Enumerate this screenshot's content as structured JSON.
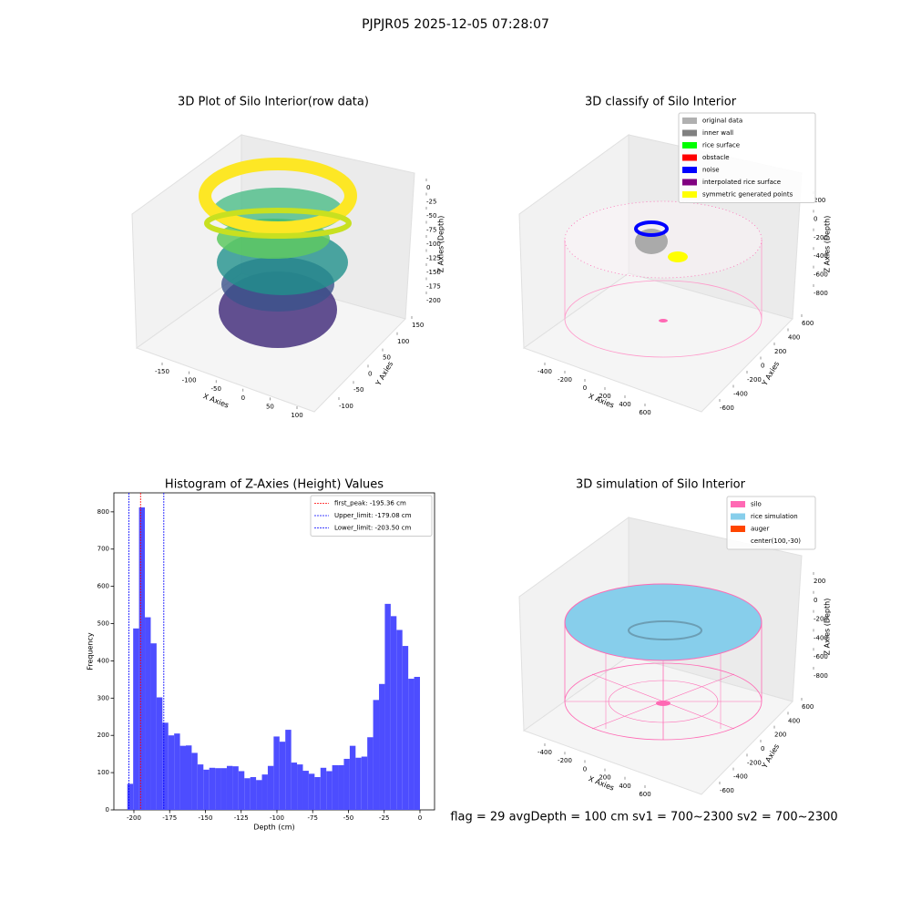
{
  "title": "PJPJR05 2025-12-05 07:28:07",
  "footer": "flag = 29  avgDepth = 100 cm  sv1 = 700~2300  sv2 = 700~2300",
  "chart_data": [
    {
      "type": "scatter3d",
      "title": "3D Plot of Silo Interior(row data)",
      "xlabel": "X Axies",
      "ylabel": "Y Axies",
      "zlabel": "Z Axies (Depth)",
      "xticks": [
        -150,
        -100,
        -50,
        0,
        50,
        100
      ],
      "yticks": [
        -100,
        -50,
        0,
        50,
        100,
        150
      ],
      "zticks": [
        0,
        -25,
        -50,
        -75,
        -100,
        -125,
        -150,
        -175,
        -200
      ]
    },
    {
      "type": "scatter3d",
      "title": "3D classify of Silo Interior",
      "xlabel": "X Axies",
      "ylabel": "Y Axies",
      "zlabel": "Z Axies (Depth)",
      "xticks": [
        -400,
        -200,
        0,
        200,
        400,
        600
      ],
      "yticks": [
        -600,
        -400,
        -200,
        0,
        200,
        400,
        600
      ],
      "zticks": [
        200,
        0,
        -200,
        -400,
        -600,
        -800
      ],
      "legend": [
        {
          "name": "original data",
          "color": "#b0b0b0"
        },
        {
          "name": "inner wall",
          "color": "#808080"
        },
        {
          "name": "rice surface",
          "color": "#00ff00"
        },
        {
          "name": "obstacle",
          "color": "#ff0000"
        },
        {
          "name": "noise",
          "color": "#0000ff"
        },
        {
          "name": "interpolated rice surface",
          "color": "#800080"
        },
        {
          "name": "symmetric generated points",
          "color": "#ffff00"
        }
      ]
    },
    {
      "type": "histogram",
      "title": "Histogram of Z-Axies (Height) Values",
      "xlabel": "Depth (cm)",
      "ylabel": "Frequency",
      "color": "#4d4dff",
      "bins": [
        -204.6,
        -200.51,
        -196.42,
        -192.32,
        -188.23,
        -184.14,
        -180.05,
        -175.96,
        -171.86,
        -167.77,
        -163.68,
        -159.59,
        -155.5,
        -151.4,
        -147.31,
        -143.22,
        -139.13,
        -135.04,
        -130.94,
        -126.85,
        -122.76,
        -118.67,
        -114.58,
        -110.48,
        -106.39,
        -102.3,
        -98.21,
        -94.12,
        -90.02,
        -85.93,
        -81.84,
        -77.75,
        -73.66,
        -69.56,
        -65.47,
        -61.38,
        -57.29,
        -53.2,
        -49.1,
        -45.01,
        -40.92,
        -36.83,
        -32.74,
        -28.64,
        -24.55,
        -20.46,
        -16.37,
        -12.28,
        -8.18,
        -4.09,
        0
      ],
      "values": [
        70,
        487,
        812,
        517,
        447,
        302,
        234,
        200,
        205,
        172,
        173,
        153,
        122,
        108,
        113,
        112,
        112,
        118,
        117,
        104,
        85,
        88,
        80,
        95,
        118,
        197,
        183,
        215,
        127,
        122,
        105,
        97,
        88,
        113,
        104,
        120,
        120,
        137,
        172,
        140,
        143,
        195,
        295,
        338,
        553,
        520,
        483,
        440,
        352,
        357
      ],
      "xlim": [
        -214,
        10.2
      ],
      "ylim": [
        0,
        851
      ],
      "xticks": [
        -200,
        -175,
        -150,
        -125,
        -100,
        -75,
        -50,
        -25,
        0
      ],
      "yticks": [
        0,
        100,
        200,
        300,
        400,
        500,
        600,
        700,
        800
      ],
      "vlines": [
        {
          "name": "first_peak: -195.36 cm",
          "value": -195.36,
          "color": "#ff0000"
        },
        {
          "name": "Upper_limit: -179.08 cm",
          "value": -179.08,
          "color": "#0000ff"
        },
        {
          "name": "Lower_limit: -203.50 cm",
          "value": -203.5,
          "color": "#0000ff"
        }
      ]
    },
    {
      "type": "scatter3d",
      "title": "3D simulation of Silo Interior",
      "xlabel": "X Axies",
      "ylabel": "Y Axies",
      "zlabel": "Z Axies (Depth)",
      "xticks": [
        -400,
        -200,
        0,
        200,
        400,
        600
      ],
      "yticks": [
        -600,
        -400,
        -200,
        0,
        200,
        400,
        600
      ],
      "zticks": [
        200,
        0,
        -200,
        -400,
        -600,
        -800
      ],
      "legend": [
        {
          "name": "silo",
          "color": "#ff69b4"
        },
        {
          "name": "rice simulation",
          "color": "#87ceeb"
        },
        {
          "name": "auger",
          "color": "#ff4500"
        },
        {
          "name": "center(100,-30)"
        }
      ]
    }
  ]
}
